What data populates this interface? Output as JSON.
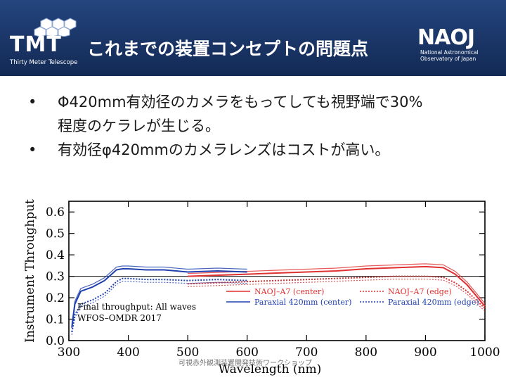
{
  "header": {
    "logo_text": "TMT",
    "logo_subtitle": "Thirty Meter Telescope",
    "title": "これまでの装置コンセプトの問題点",
    "org_logo_text": "NAOJ",
    "org_line1": "National Astronomical",
    "org_line2": "Observatory of Japan",
    "header_color": "#1a3566"
  },
  "bullets": [
    {
      "marker": "•",
      "line1": "Φ420mm有効径のカメラをもってしても視野端で30%",
      "line2": "程度のケラレが生じる。"
    },
    {
      "marker": "•",
      "line1": "有効径φ420mmのカメラレンズはコストが高い。",
      "line2": ""
    }
  ],
  "footer": "可視赤外観測装置開発技術ワークショップ",
  "chart_data": {
    "type": "line",
    "title": "",
    "xlabel": "Wavelength (nm)",
    "ylabel": "Instrument Throughput",
    "xlim": [
      300,
      1000
    ],
    "ylim": [
      0.0,
      0.65
    ],
    "xticks": [
      300,
      400,
      500,
      600,
      700,
      800,
      900,
      1000
    ],
    "yticks": [
      0.0,
      0.1,
      0.2,
      0.3,
      0.4,
      0.5,
      0.6
    ],
    "reference_line": 0.3,
    "annotation": [
      "Final throughput: All waves",
      "WFOS–OMDR 2017"
    ],
    "series": [
      {
        "name": "NAOJ–A7 (center)",
        "style": "solid",
        "color": "#e03030",
        "x": [
          500,
          550,
          600,
          650,
          700,
          750,
          800,
          850,
          900,
          930,
          950,
          970,
          985,
          1000
        ],
        "y": [
          0.3,
          0.305,
          0.31,
          0.315,
          0.32,
          0.325,
          0.335,
          0.34,
          0.345,
          0.34,
          0.31,
          0.26,
          0.21,
          0.16
        ]
      },
      {
        "name": "NAOJ–A7 (edge)",
        "style": "dotted",
        "color": "#e03030",
        "x": [
          500,
          550,
          600,
          650,
          700,
          750,
          800,
          850,
          900,
          930,
          950,
          970,
          985,
          1000
        ],
        "y": [
          0.265,
          0.27,
          0.275,
          0.28,
          0.285,
          0.29,
          0.295,
          0.3,
          0.3,
          0.295,
          0.27,
          0.23,
          0.19,
          0.15
        ]
      },
      {
        "name": "Paraxial 420mm (center)",
        "style": "solid",
        "color": "#2040b0",
        "x": [
          305,
          310,
          320,
          340,
          360,
          380,
          390,
          400,
          430,
          460,
          500,
          550,
          600
        ],
        "y": [
          0.06,
          0.17,
          0.23,
          0.25,
          0.28,
          0.33,
          0.335,
          0.335,
          0.33,
          0.33,
          0.32,
          0.325,
          0.32
        ]
      },
      {
        "name": "Paraxial 420mm (edge)",
        "style": "dotted",
        "color": "#2040b0",
        "x": [
          305,
          310,
          320,
          340,
          360,
          380,
          390,
          400,
          430,
          460,
          500,
          550,
          600
        ],
        "y": [
          0.04,
          0.12,
          0.17,
          0.19,
          0.22,
          0.275,
          0.29,
          0.29,
          0.285,
          0.285,
          0.28,
          0.285,
          0.28
        ]
      }
    ]
  }
}
